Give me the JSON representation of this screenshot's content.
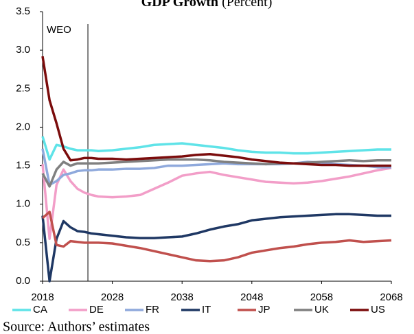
{
  "chart_data": {
    "type": "line",
    "title": "GDP Growth",
    "title_unit": "(Percent)",
    "annotation": {
      "text": "WEO",
      "x": 2024.5
    },
    "source": "Source: Authors’ estimates",
    "x": [
      2018,
      2019,
      2020,
      2021,
      2022,
      2023,
      2024,
      2025,
      2026,
      2028,
      2030,
      2032,
      2034,
      2036,
      2038,
      2040,
      2042,
      2044,
      2046,
      2048,
      2050,
      2052,
      2054,
      2056,
      2058,
      2060,
      2062,
      2064,
      2066,
      2068
    ],
    "xlim": [
      2018,
      2068
    ],
    "xticks": [
      2018,
      2028,
      2038,
      2048,
      2058,
      2068
    ],
    "ylim": [
      0,
      3.5
    ],
    "yticks": [
      {
        "value": 0,
        "label": "0.0"
      },
      {
        "value": 0.5,
        "label": "0.5"
      },
      {
        "value": 1,
        "label": "1.0"
      },
      {
        "value": 1.5,
        "label": "1.5"
      },
      {
        "value": 2,
        "label": "2.0"
      },
      {
        "value": 2.5,
        "label": "2.5"
      },
      {
        "value": 3,
        "label": "3.0"
      },
      {
        "value": 3.5,
        "label": "3.5"
      }
    ],
    "grid": false,
    "legend": "bottom",
    "series": [
      {
        "name": "CA",
        "color": "#5fe3e8",
        "values": [
          1.88,
          1.58,
          1.77,
          1.75,
          1.72,
          1.7,
          1.7,
          1.7,
          1.69,
          1.7,
          1.72,
          1.74,
          1.77,
          1.78,
          1.79,
          1.77,
          1.75,
          1.73,
          1.7,
          1.68,
          1.67,
          1.67,
          1.66,
          1.66,
          1.67,
          1.68,
          1.69,
          1.7,
          1.71,
          1.71
        ]
      },
      {
        "name": "DE",
        "color": "#f29ec8",
        "values": [
          1.52,
          0.55,
          1.25,
          1.45,
          1.3,
          1.2,
          1.15,
          1.12,
          1.1,
          1.09,
          1.1,
          1.12,
          1.2,
          1.28,
          1.37,
          1.4,
          1.42,
          1.38,
          1.35,
          1.32,
          1.29,
          1.28,
          1.27,
          1.28,
          1.3,
          1.33,
          1.36,
          1.4,
          1.44,
          1.47
        ]
      },
      {
        "name": "FR",
        "color": "#8fa9dc",
        "values": [
          1.72,
          1.25,
          1.3,
          1.38,
          1.4,
          1.43,
          1.44,
          1.44,
          1.45,
          1.45,
          1.46,
          1.46,
          1.47,
          1.5,
          1.5,
          1.51,
          1.52,
          1.53,
          1.52,
          1.52,
          1.52,
          1.52,
          1.53,
          1.55,
          1.54,
          1.52,
          1.51,
          1.5,
          1.48,
          1.48
        ]
      },
      {
        "name": "IT",
        "color": "#1f3864",
        "values": [
          0.85,
          0.0,
          0.55,
          0.78,
          0.7,
          0.65,
          0.64,
          0.62,
          0.61,
          0.59,
          0.57,
          0.56,
          0.56,
          0.57,
          0.58,
          0.62,
          0.67,
          0.71,
          0.74,
          0.79,
          0.81,
          0.83,
          0.84,
          0.85,
          0.86,
          0.87,
          0.87,
          0.86,
          0.85,
          0.85
        ]
      },
      {
        "name": "JP",
        "color": "#c0504d",
        "values": [
          0.82,
          0.9,
          0.47,
          0.45,
          0.52,
          0.51,
          0.5,
          0.5,
          0.5,
          0.49,
          0.46,
          0.43,
          0.39,
          0.35,
          0.31,
          0.27,
          0.26,
          0.27,
          0.31,
          0.37,
          0.4,
          0.43,
          0.45,
          0.48,
          0.5,
          0.51,
          0.53,
          0.51,
          0.52,
          0.53
        ]
      },
      {
        "name": "UK",
        "color": "#808080",
        "values": [
          1.4,
          1.23,
          1.45,
          1.55,
          1.5,
          1.53,
          1.53,
          1.53,
          1.53,
          1.54,
          1.55,
          1.56,
          1.57,
          1.58,
          1.58,
          1.58,
          1.57,
          1.55,
          1.54,
          1.53,
          1.52,
          1.53,
          1.53,
          1.54,
          1.55,
          1.56,
          1.57,
          1.56,
          1.57,
          1.57
        ]
      },
      {
        "name": "US",
        "color": "#7b0c0c",
        "values": [
          2.92,
          2.35,
          2.05,
          1.72,
          1.57,
          1.58,
          1.6,
          1.6,
          1.59,
          1.59,
          1.58,
          1.59,
          1.6,
          1.61,
          1.62,
          1.64,
          1.65,
          1.63,
          1.61,
          1.58,
          1.56,
          1.54,
          1.53,
          1.52,
          1.51,
          1.51,
          1.5,
          1.5,
          1.5,
          1.5
        ]
      }
    ]
  }
}
